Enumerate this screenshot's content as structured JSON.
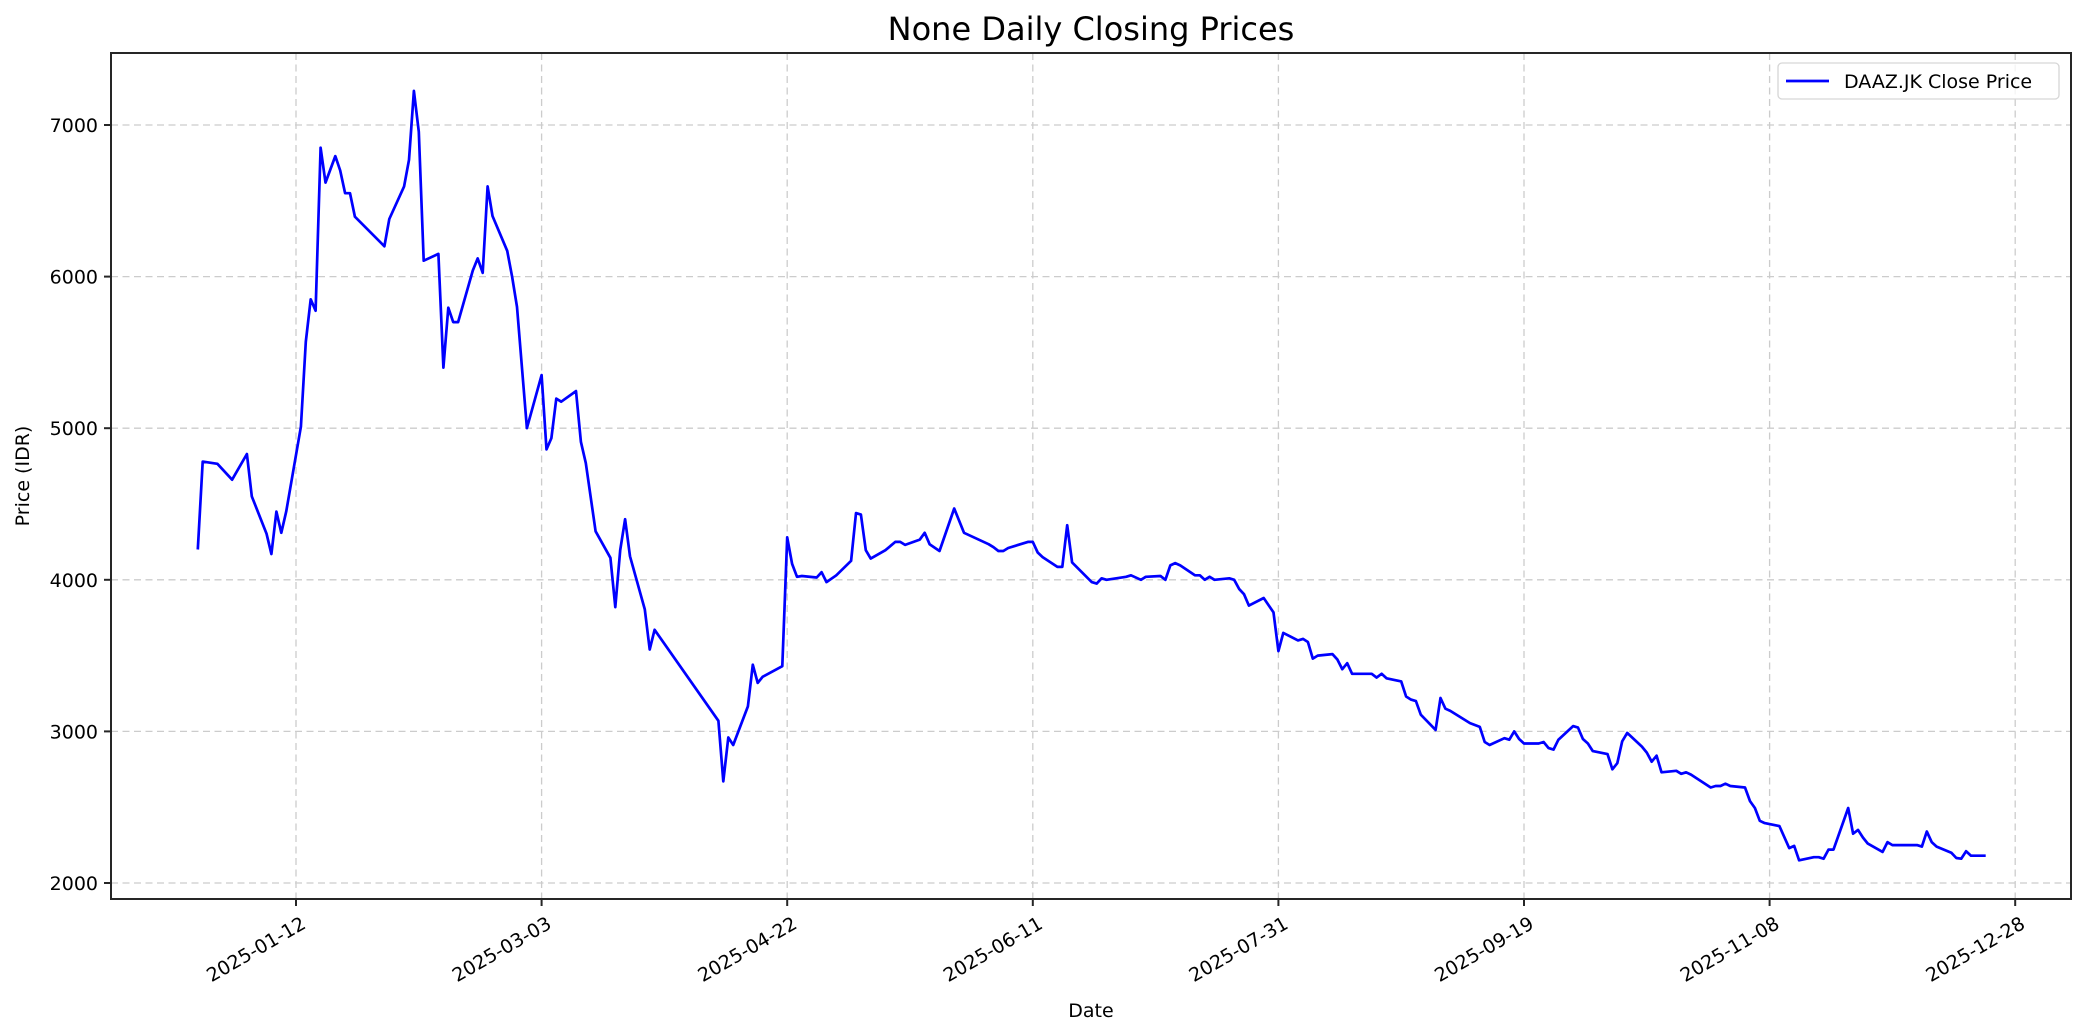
{
  "chart_data": {
    "type": "line",
    "title": "None Daily Closing Prices",
    "xlabel": "Date",
    "ylabel": "Price (IDR)",
    "ylim": [
      1900,
      7470
    ],
    "xlim": [
      "2024-12-20",
      "2026-01-08"
    ],
    "grid": true,
    "legend_position": "upper right",
    "x_ticks": [
      "2025-01-12",
      "2025-03-03",
      "2025-04-22",
      "2025-06-11",
      "2025-07-31",
      "2025-09-19",
      "2025-11-08",
      "2025-12-28"
    ],
    "y_ticks": [
      2000,
      3000,
      4000,
      5000,
      6000,
      7000
    ],
    "series": [
      {
        "name": "DAAZ.JK Close Price",
        "color": "#0000ff",
        "points": [
          [
            "2024-12-23",
            4200
          ],
          [
            "2024-12-24",
            4780
          ],
          [
            "2024-12-27",
            4765
          ],
          [
            "2024-12-30",
            4660
          ],
          [
            "2025-01-02",
            4830
          ],
          [
            "2025-01-03",
            4550
          ],
          [
            "2025-01-06",
            4305
          ],
          [
            "2025-01-07",
            4170
          ],
          [
            "2025-01-08",
            4450
          ],
          [
            "2025-01-09",
            4310
          ],
          [
            "2025-01-10",
            4450
          ],
          [
            "2025-01-13",
            5010
          ],
          [
            "2025-01-14",
            5570
          ],
          [
            "2025-01-15",
            5850
          ],
          [
            "2025-01-16",
            5775
          ],
          [
            "2025-01-17",
            6850
          ],
          [
            "2025-01-18",
            6620
          ],
          [
            "2025-01-20",
            6795
          ],
          [
            "2025-01-21",
            6700
          ],
          [
            "2025-01-22",
            6550
          ],
          [
            "2025-01-23",
            6550
          ],
          [
            "2025-01-24",
            6395
          ],
          [
            "2025-01-30",
            6200
          ],
          [
            "2025-01-31",
            6380
          ],
          [
            "2025-02-03",
            6595
          ],
          [
            "2025-02-04",
            6770
          ],
          [
            "2025-02-05",
            7225
          ],
          [
            "2025-02-06",
            6955
          ],
          [
            "2025-02-07",
            6105
          ],
          [
            "2025-02-10",
            6150
          ],
          [
            "2025-02-11",
            5400
          ],
          [
            "2025-02-12",
            5795
          ],
          [
            "2025-02-13",
            5700
          ],
          [
            "2025-02-14",
            5700
          ],
          [
            "2025-02-17",
            6040
          ],
          [
            "2025-02-18",
            6120
          ],
          [
            "2025-02-19",
            6025
          ],
          [
            "2025-02-20",
            6595
          ],
          [
            "2025-02-21",
            6400
          ],
          [
            "2025-02-24",
            6170
          ],
          [
            "2025-02-25",
            6000
          ],
          [
            "2025-02-26",
            5800
          ],
          [
            "2025-02-28",
            5000
          ],
          [
            "2025-03-03",
            5350
          ],
          [
            "2025-03-04",
            4860
          ],
          [
            "2025-03-05",
            4935
          ],
          [
            "2025-03-06",
            5195
          ],
          [
            "2025-03-07",
            5175
          ],
          [
            "2025-03-10",
            5245
          ],
          [
            "2025-03-11",
            4910
          ],
          [
            "2025-03-12",
            4770
          ],
          [
            "2025-03-14",
            4320
          ],
          [
            "2025-03-17",
            4145
          ],
          [
            "2025-03-18",
            3820
          ],
          [
            "2025-03-19",
            4195
          ],
          [
            "2025-03-20",
            4400
          ],
          [
            "2025-03-21",
            4155
          ],
          [
            "2025-03-24",
            3805
          ],
          [
            "2025-03-25",
            3540
          ],
          [
            "2025-03-26",
            3670
          ],
          [
            "2025-04-08",
            3070
          ],
          [
            "2025-04-09",
            2670
          ],
          [
            "2025-04-10",
            2960
          ],
          [
            "2025-04-11",
            2910
          ],
          [
            "2025-04-14",
            3165
          ],
          [
            "2025-04-15",
            3440
          ],
          [
            "2025-04-16",
            3320
          ],
          [
            "2025-04-17",
            3360
          ],
          [
            "2025-04-21",
            3430
          ],
          [
            "2025-04-22",
            4280
          ],
          [
            "2025-04-23",
            4105
          ],
          [
            "2025-04-24",
            4020
          ],
          [
            "2025-04-25",
            4025
          ],
          [
            "2025-04-28",
            4015
          ],
          [
            "2025-04-29",
            4050
          ],
          [
            "2025-04-30",
            3985
          ],
          [
            "2025-05-02",
            4030
          ],
          [
            "2025-05-05",
            4125
          ],
          [
            "2025-05-06",
            4440
          ],
          [
            "2025-05-07",
            4430
          ],
          [
            "2025-05-08",
            4195
          ],
          [
            "2025-05-09",
            4140
          ],
          [
            "2025-05-12",
            4195
          ],
          [
            "2025-05-14",
            4250
          ],
          [
            "2025-05-15",
            4250
          ],
          [
            "2025-05-16",
            4230
          ],
          [
            "2025-05-19",
            4265
          ],
          [
            "2025-05-20",
            4310
          ],
          [
            "2025-05-21",
            4235
          ],
          [
            "2025-05-23",
            4190
          ],
          [
            "2025-05-26",
            4470
          ],
          [
            "2025-05-28",
            4310
          ],
          [
            "2025-06-02",
            4235
          ],
          [
            "2025-06-03",
            4215
          ],
          [
            "2025-06-04",
            4190
          ],
          [
            "2025-06-05",
            4190
          ],
          [
            "2025-06-06",
            4210
          ],
          [
            "2025-06-10",
            4250
          ],
          [
            "2025-06-11",
            4250
          ],
          [
            "2025-06-12",
            4180
          ],
          [
            "2025-06-13",
            4150
          ],
          [
            "2025-06-16",
            4085
          ],
          [
            "2025-06-17",
            4085
          ],
          [
            "2025-06-18",
            4360
          ],
          [
            "2025-06-19",
            4115
          ],
          [
            "2025-06-23",
            3985
          ],
          [
            "2025-06-24",
            3975
          ],
          [
            "2025-06-25",
            4010
          ],
          [
            "2025-06-26",
            4000
          ],
          [
            "2025-06-30",
            4020
          ],
          [
            "2025-07-01",
            4030
          ],
          [
            "2025-07-03",
            4000
          ],
          [
            "2025-07-04",
            4020
          ],
          [
            "2025-07-07",
            4025
          ],
          [
            "2025-07-08",
            4000
          ],
          [
            "2025-07-09",
            4095
          ],
          [
            "2025-07-10",
            4110
          ],
          [
            "2025-07-11",
            4095
          ],
          [
            "2025-07-14",
            4030
          ],
          [
            "2025-07-15",
            4030
          ],
          [
            "2025-07-16",
            4000
          ],
          [
            "2025-07-17",
            4020
          ],
          [
            "2025-07-18",
            4000
          ],
          [
            "2025-07-21",
            4010
          ],
          [
            "2025-07-22",
            4000
          ],
          [
            "2025-07-23",
            3940
          ],
          [
            "2025-07-24",
            3905
          ],
          [
            "2025-07-25",
            3830
          ],
          [
            "2025-07-28",
            3880
          ],
          [
            "2025-07-30",
            3785
          ],
          [
            "2025-07-31",
            3530
          ],
          [
            "2025-08-01",
            3650
          ],
          [
            "2025-08-04",
            3600
          ],
          [
            "2025-08-05",
            3610
          ],
          [
            "2025-08-06",
            3590
          ],
          [
            "2025-08-07",
            3480
          ],
          [
            "2025-08-08",
            3500
          ],
          [
            "2025-08-11",
            3510
          ],
          [
            "2025-08-12",
            3475
          ],
          [
            "2025-08-13",
            3410
          ],
          [
            "2025-08-14",
            3450
          ],
          [
            "2025-08-15",
            3380
          ],
          [
            "2025-08-19",
            3380
          ],
          [
            "2025-08-20",
            3355
          ],
          [
            "2025-08-21",
            3380
          ],
          [
            "2025-08-22",
            3350
          ],
          [
            "2025-08-25",
            3330
          ],
          [
            "2025-08-26",
            3230
          ],
          [
            "2025-08-27",
            3210
          ],
          [
            "2025-08-28",
            3200
          ],
          [
            "2025-08-29",
            3110
          ],
          [
            "2025-09-01",
            3010
          ],
          [
            "2025-09-02",
            3220
          ],
          [
            "2025-09-03",
            3150
          ],
          [
            "2025-09-04",
            3135
          ],
          [
            "2025-09-08",
            3055
          ],
          [
            "2025-09-10",
            3030
          ],
          [
            "2025-09-11",
            2930
          ],
          [
            "2025-09-12",
            2910
          ],
          [
            "2025-09-15",
            2955
          ],
          [
            "2025-09-16",
            2945
          ],
          [
            "2025-09-17",
            3000
          ],
          [
            "2025-09-18",
            2950
          ],
          [
            "2025-09-19",
            2920
          ],
          [
            "2025-09-22",
            2920
          ],
          [
            "2025-09-23",
            2930
          ],
          [
            "2025-09-24",
            2890
          ],
          [
            "2025-09-25",
            2880
          ],
          [
            "2025-09-26",
            2945
          ],
          [
            "2025-09-29",
            3035
          ],
          [
            "2025-09-30",
            3025
          ],
          [
            "2025-10-01",
            2950
          ],
          [
            "2025-10-02",
            2920
          ],
          [
            "2025-10-03",
            2870
          ],
          [
            "2025-10-06",
            2850
          ],
          [
            "2025-10-07",
            2750
          ],
          [
            "2025-10-08",
            2790
          ],
          [
            "2025-10-09",
            2935
          ],
          [
            "2025-10-10",
            2990
          ],
          [
            "2025-10-13",
            2900
          ],
          [
            "2025-10-14",
            2860
          ],
          [
            "2025-10-15",
            2800
          ],
          [
            "2025-10-16",
            2840
          ],
          [
            "2025-10-17",
            2730
          ],
          [
            "2025-10-20",
            2740
          ],
          [
            "2025-10-21",
            2720
          ],
          [
            "2025-10-22",
            2730
          ],
          [
            "2025-10-23",
            2715
          ],
          [
            "2025-10-27",
            2630
          ],
          [
            "2025-10-28",
            2640
          ],
          [
            "2025-10-29",
            2640
          ],
          [
            "2025-10-30",
            2655
          ],
          [
            "2025-10-31",
            2640
          ],
          [
            "2025-11-03",
            2630
          ],
          [
            "2025-11-04",
            2540
          ],
          [
            "2025-11-05",
            2495
          ],
          [
            "2025-11-06",
            2410
          ],
          [
            "2025-11-07",
            2395
          ],
          [
            "2025-11-10",
            2375
          ],
          [
            "2025-11-12",
            2230
          ],
          [
            "2025-11-13",
            2245
          ],
          [
            "2025-11-14",
            2150
          ],
          [
            "2025-11-17",
            2170
          ],
          [
            "2025-11-18",
            2170
          ],
          [
            "2025-11-19",
            2160
          ],
          [
            "2025-11-20",
            2220
          ],
          [
            "2025-11-21",
            2220
          ],
          [
            "2025-11-24",
            2495
          ],
          [
            "2025-11-25",
            2325
          ],
          [
            "2025-11-26",
            2350
          ],
          [
            "2025-11-27",
            2300
          ],
          [
            "2025-11-28",
            2260
          ],
          [
            "2025-12-01",
            2205
          ],
          [
            "2025-12-02",
            2270
          ],
          [
            "2025-12-03",
            2250
          ],
          [
            "2025-12-08",
            2250
          ],
          [
            "2025-12-09",
            2240
          ],
          [
            "2025-12-10",
            2340
          ],
          [
            "2025-12-11",
            2270
          ],
          [
            "2025-12-12",
            2240
          ],
          [
            "2025-12-15",
            2200
          ],
          [
            "2025-12-16",
            2165
          ],
          [
            "2025-12-17",
            2160
          ],
          [
            "2025-12-18",
            2210
          ],
          [
            "2025-12-19",
            2180
          ],
          [
            "2025-12-22",
            2180
          ]
        ]
      }
    ]
  },
  "legend": {
    "items": [
      {
        "label": "DAAZ.JK Close Price",
        "color": "#0000ff"
      }
    ]
  }
}
